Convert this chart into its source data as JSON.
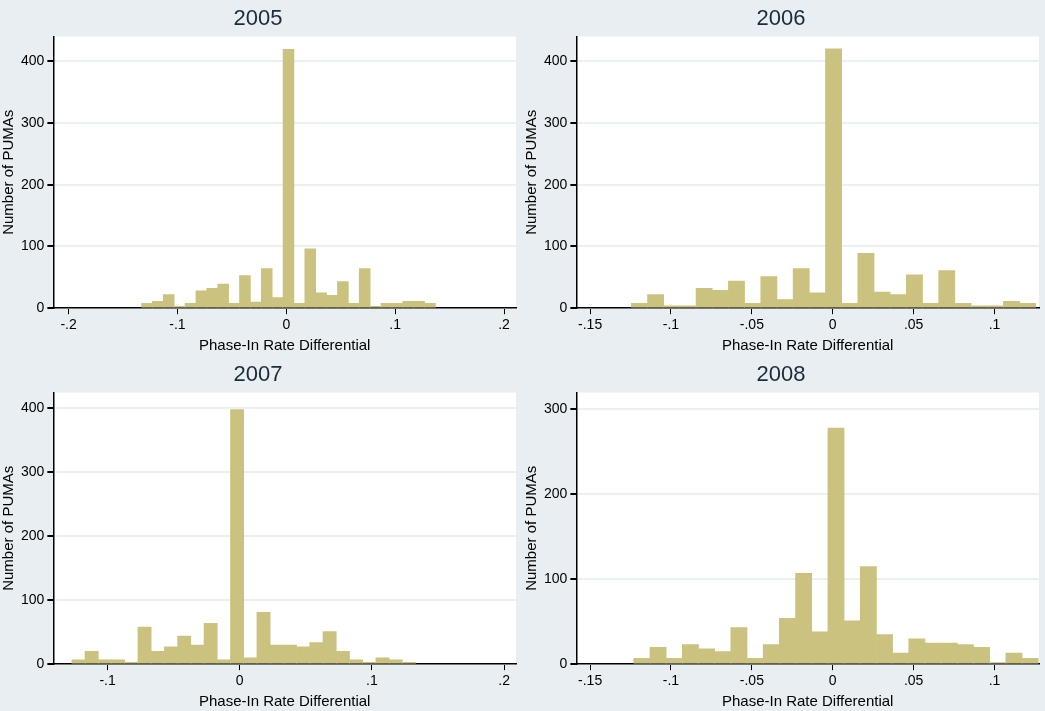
{
  "chart_data": [
    {
      "type": "histogram",
      "title": "2005",
      "xlabel": "Phase-In Rate Differential",
      "ylabel": "Number of PUMAs",
      "color": "#cbc27f",
      "grid": "y",
      "bins": [
        -0.133,
        -0.123,
        -0.113,
        -0.103,
        -0.093,
        -0.083,
        -0.073,
        -0.063,
        -0.053,
        -0.043,
        -0.033,
        -0.023,
        -0.013,
        -0.003,
        0.007,
        0.017,
        0.027,
        0.037,
        0.047,
        0.057,
        0.067,
        0.077,
        0.087,
        0.097,
        0.107,
        0.117,
        0.127,
        0.137
      ],
      "values": [
        8,
        11,
        22,
        3,
        8,
        28,
        32,
        39,
        8,
        53,
        10,
        64,
        17,
        419,
        8,
        96,
        25,
        21,
        43,
        8,
        64,
        3,
        8,
        8,
        11,
        11,
        8
      ],
      "xlim": [
        -0.214,
        0.211
      ],
      "xticks": [
        {
          "value": -0.2,
          "label": "-.2"
        },
        {
          "value": -0.1,
          "label": "-.1"
        },
        {
          "value": 0,
          "label": "0"
        },
        {
          "value": 0.1,
          "label": ".1"
        },
        {
          "value": 0.2,
          "label": ".2"
        }
      ],
      "ylim": [
        0,
        440
      ],
      "yticks": [
        0,
        100,
        200,
        300,
        400
      ]
    },
    {
      "type": "histogram",
      "title": "2006",
      "xlabel": "Phase-In Rate Differential",
      "ylabel": "Number of PUMAs",
      "color": "#cbc27f",
      "grid": "y",
      "bins": [
        -0.1245,
        -0.1145,
        -0.1045,
        -0.0945,
        -0.0845,
        -0.0745,
        -0.0645,
        -0.0545,
        -0.0445,
        -0.0345,
        -0.0245,
        -0.0145,
        -0.0045,
        0.0055,
        0.0155,
        0.0255,
        0.0355,
        0.0455,
        0.0555,
        0.0655,
        0.0755,
        0.0855,
        0.0955,
        0.1055,
        0.1155,
        0.1255
      ],
      "values": [
        8,
        22,
        4,
        4,
        32,
        29,
        44,
        8,
        51,
        14,
        64,
        25,
        420,
        8,
        89,
        26,
        22,
        54,
        8,
        61,
        8,
        4,
        4,
        11,
        8
      ],
      "xlim": [
        -0.1585,
        0.1275
      ],
      "xticks": [
        {
          "value": -0.15,
          "label": "-.15"
        },
        {
          "value": -0.1,
          "label": "-.1"
        },
        {
          "value": -0.05,
          "label": "-.05"
        },
        {
          "value": 0,
          "label": "0"
        },
        {
          "value": 0.05,
          "label": ".05"
        },
        {
          "value": 0.1,
          "label": ".1"
        }
      ],
      "ylim": [
        0,
        440
      ],
      "yticks": [
        0,
        100,
        200,
        300,
        400
      ]
    },
    {
      "type": "histogram",
      "title": "2007",
      "xlabel": "Phase-In Rate Differential",
      "ylabel": "Number of PUMAs",
      "color": "#cbc27f",
      "grid": "y",
      "bins": [
        -0.127,
        -0.117,
        -0.107,
        -0.097,
        -0.087,
        -0.077,
        -0.067,
        -0.057,
        -0.047,
        -0.037,
        -0.027,
        -0.017,
        -0.007,
        0.003,
        0.013,
        0.023,
        0.033,
        0.043,
        0.053,
        0.063,
        0.073,
        0.083,
        0.093,
        0.103,
        0.113,
        0.123,
        0.133
      ],
      "values": [
        7,
        20,
        7,
        7,
        3,
        58,
        20,
        27,
        44,
        30,
        64,
        7,
        398,
        10,
        81,
        30,
        30,
        27,
        34,
        51,
        20,
        7,
        3,
        10,
        7,
        3
      ],
      "xlim": [
        -0.141,
        0.209
      ],
      "xticks": [
        {
          "value": -0.1,
          "label": "-.1"
        },
        {
          "value": 0,
          "label": "0"
        },
        {
          "value": 0.1,
          "label": ".1"
        },
        {
          "value": 0.2,
          "label": ".2"
        }
      ],
      "ylim": [
        0,
        425
      ],
      "yticks": [
        0,
        100,
        200,
        300,
        400
      ]
    },
    {
      "type": "histogram",
      "title": "2008",
      "xlabel": "Phase-In Rate Differential",
      "ylabel": "Number of PUMAs",
      "color": "#cbc27f",
      "grid": "y",
      "bins": [
        -0.123,
        -0.113,
        -0.103,
        -0.093,
        -0.083,
        -0.073,
        -0.063,
        -0.053,
        -0.043,
        -0.033,
        -0.023,
        -0.013,
        -0.003,
        0.007,
        0.017,
        0.027,
        0.037,
        0.047,
        0.057,
        0.067,
        0.077,
        0.087,
        0.097,
        0.107,
        0.117,
        0.127
      ],
      "values": [
        7,
        20,
        7,
        23,
        18,
        15,
        43,
        7,
        23,
        54,
        107,
        38,
        278,
        51,
        115,
        35,
        13,
        30,
        25,
        25,
        23,
        20,
        2,
        13,
        7
      ],
      "xlim": [
        -0.1585,
        0.1275
      ],
      "xticks": [
        {
          "value": -0.15,
          "label": "-.15"
        },
        {
          "value": -0.1,
          "label": "-.1"
        },
        {
          "value": -0.05,
          "label": "-.05"
        },
        {
          "value": 0,
          "label": "0"
        },
        {
          "value": 0.05,
          "label": ".05"
        },
        {
          "value": 0.1,
          "label": ".1"
        }
      ],
      "ylim": [
        0,
        320
      ],
      "yticks": [
        0,
        100,
        200,
        300
      ]
    }
  ]
}
